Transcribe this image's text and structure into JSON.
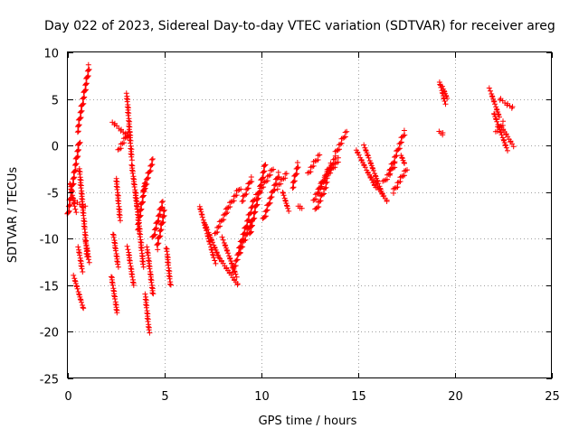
{
  "chart_data": {
    "type": "scatter",
    "title": "Day 022 of 2023, Sidereal Day-to-day VTEC variation (SDTVAR) for receiver areg",
    "xlabel": "GPS time / hours",
    "ylabel": "SDTVAR / TECUs",
    "xlim": [
      0,
      25
    ],
    "ylim": [
      -25,
      10
    ],
    "xticks": [
      0,
      5,
      10,
      15,
      20,
      25
    ],
    "yticks": [
      -25,
      -20,
      -15,
      -10,
      -5,
      0,
      5,
      10
    ],
    "grid": true,
    "marker": "plus",
    "color": "#ff0000",
    "segments": [
      {
        "x0": 0.0,
        "x1": 0.6,
        "y0": -7.5,
        "y1": 0.5
      },
      {
        "x0": 0.1,
        "x1": 0.4,
        "y0": -4.0,
        "y1": -7.0
      },
      {
        "x0": 0.3,
        "x1": 0.9,
        "y0": -6.0,
        "y1": -6.5
      },
      {
        "x0": 0.5,
        "x1": 1.1,
        "y0": 1.5,
        "y1": 8.5
      },
      {
        "x0": 0.6,
        "x1": 1.0,
        "y0": -2.5,
        "y1": -12.0
      },
      {
        "x0": 0.3,
        "x1": 0.8,
        "y0": -14.0,
        "y1": -17.5
      },
      {
        "x0": 0.55,
        "x1": 0.75,
        "y0": -11.0,
        "y1": -13.5
      },
      {
        "x0": 0.95,
        "x1": 1.1,
        "y0": -10.5,
        "y1": -12.5
      },
      {
        "x0": 2.25,
        "x1": 2.55,
        "y0": -14.0,
        "y1": -18.0
      },
      {
        "x0": 2.35,
        "x1": 2.6,
        "y0": -9.5,
        "y1": -13.0
      },
      {
        "x0": 2.5,
        "x1": 2.7,
        "y0": -3.5,
        "y1": -8.0
      },
      {
        "x0": 2.3,
        "x1": 3.1,
        "y0": 2.5,
        "y1": 1.0
      },
      {
        "x0": 2.6,
        "x1": 3.2,
        "y0": -0.5,
        "y1": 1.5
      },
      {
        "x0": 3.05,
        "x1": 3.3,
        "y0": 5.5,
        "y1": -1.5
      },
      {
        "x0": 3.1,
        "x1": 3.4,
        "y0": -11.0,
        "y1": -15.0
      },
      {
        "x0": 3.3,
        "x1": 3.6,
        "y0": -2.0,
        "y1": -7.0
      },
      {
        "x0": 3.5,
        "x1": 3.9,
        "y0": -5.0,
        "y1": -13.0
      },
      {
        "x0": 3.6,
        "x1": 4.0,
        "y0": -9.0,
        "y1": -4.0
      },
      {
        "x0": 3.9,
        "x1": 4.4,
        "y0": -5.0,
        "y1": -1.5
      },
      {
        "x0": 4.0,
        "x1": 4.2,
        "y0": -16.0,
        "y1": -20.0
      },
      {
        "x0": 4.1,
        "x1": 4.4,
        "y0": -11.0,
        "y1": -16.0
      },
      {
        "x0": 4.4,
        "x1": 4.9,
        "y0": -10.0,
        "y1": -6.0
      },
      {
        "x0": 4.6,
        "x1": 5.0,
        "y0": -11.0,
        "y1": -7.0
      },
      {
        "x0": 5.1,
        "x1": 5.3,
        "y0": -11.0,
        "y1": -15.0
      },
      {
        "x0": 6.8,
        "x1": 7.6,
        "y0": -6.5,
        "y1": -12.5
      },
      {
        "x0": 7.1,
        "x1": 7.8,
        "y0": -8.5,
        "y1": -12.0
      },
      {
        "x0": 7.6,
        "x1": 8.2,
        "y0": -9.5,
        "y1": -7.0
      },
      {
        "x0": 7.8,
        "x1": 8.8,
        "y0": -12.0,
        "y1": -15.0
      },
      {
        "x0": 8.0,
        "x1": 8.7,
        "y0": -10.0,
        "y1": -14.0
      },
      {
        "x0": 8.2,
        "x1": 8.9,
        "y0": -7.0,
        "y1": -4.5
      },
      {
        "x0": 8.5,
        "x1": 9.5,
        "y0": -13.5,
        "y1": -8.0
      },
      {
        "x0": 8.8,
        "x1": 9.6,
        "y0": -11.5,
        "y1": -6.0
      },
      {
        "x0": 9.0,
        "x1": 9.5,
        "y0": -6.0,
        "y1": -3.5
      },
      {
        "x0": 9.4,
        "x1": 10.2,
        "y0": -9.5,
        "y1": -2.0
      },
      {
        "x0": 9.6,
        "x1": 10.6,
        "y0": -6.0,
        "y1": -2.5
      },
      {
        "x0": 10.1,
        "x1": 10.9,
        "y0": -8.0,
        "y1": -3.0
      },
      {
        "x0": 10.8,
        "x1": 11.3,
        "y0": -4.5,
        "y1": -3.0
      },
      {
        "x0": 11.1,
        "x1": 11.4,
        "y0": -5.0,
        "y1": -7.0
      },
      {
        "x0": 11.6,
        "x1": 11.9,
        "y0": -4.5,
        "y1": -2.0
      },
      {
        "x0": 11.9,
        "x1": 12.1,
        "y0": -6.5,
        "y1": -6.8
      },
      {
        "x0": 12.4,
        "x1": 13.0,
        "y0": -3.0,
        "y1": -1.0
      },
      {
        "x0": 12.7,
        "x1": 13.6,
        "y0": -6.0,
        "y1": -2.0
      },
      {
        "x0": 12.8,
        "x1": 13.4,
        "y0": -7.0,
        "y1": -4.0
      },
      {
        "x0": 12.9,
        "x1": 13.8,
        "y0": -5.0,
        "y1": -1.5
      },
      {
        "x0": 13.8,
        "x1": 14.4,
        "y0": -1.0,
        "y1": 1.5
      },
      {
        "x0": 13.3,
        "x1": 14.0,
        "y0": -3.5,
        "y1": -1.5
      },
      {
        "x0": 14.9,
        "x1": 15.9,
        "y0": -0.5,
        "y1": -4.5
      },
      {
        "x0": 15.3,
        "x1": 16.3,
        "y0": 0.0,
        "y1": -5.5
      },
      {
        "x0": 15.7,
        "x1": 16.5,
        "y0": -3.5,
        "y1": -6.0
      },
      {
        "x0": 16.3,
        "x1": 16.9,
        "y0": -4.0,
        "y1": -2.0
      },
      {
        "x0": 16.6,
        "x1": 17.4,
        "y0": -3.0,
        "y1": 1.5
      },
      {
        "x0": 16.8,
        "x1": 17.5,
        "y0": -5.0,
        "y1": -2.5
      },
      {
        "x0": 17.2,
        "x1": 17.4,
        "y0": -1.0,
        "y1": -2.0
      },
      {
        "x0": 19.2,
        "x1": 19.5,
        "y0": 6.8,
        "y1": 4.5
      },
      {
        "x0": 19.35,
        "x1": 19.6,
        "y0": 6.3,
        "y1": 5.0
      },
      {
        "x0": 19.2,
        "x1": 19.4,
        "y0": 1.4,
        "y1": 1.2
      },
      {
        "x0": 21.8,
        "x1": 22.3,
        "y0": 6.0,
        "y1": 3.0
      },
      {
        "x0": 22.0,
        "x1": 22.7,
        "y0": 3.5,
        "y1": -0.5
      },
      {
        "x0": 22.3,
        "x1": 23.0,
        "y0": 5.0,
        "y1": 4.0
      },
      {
        "x0": 22.4,
        "x1": 23.0,
        "y0": 2.0,
        "y1": 0.0
      },
      {
        "x0": 22.1,
        "x1": 22.5,
        "y0": 1.5,
        "y1": 2.5
      }
    ]
  }
}
